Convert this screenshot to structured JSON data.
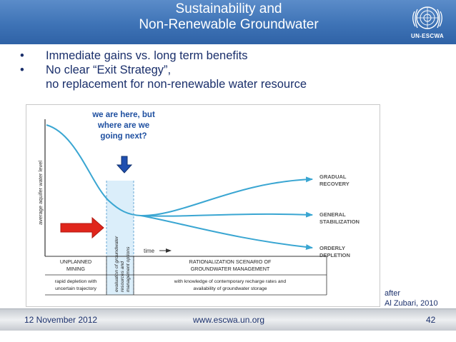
{
  "header": {
    "title_line1": "Sustainability and",
    "title_line2": "Non-Renewable Groundwater",
    "logo_text": "UN-ESCWA",
    "color": "#3e73b6"
  },
  "bullets": [
    {
      "text": "Immediate gains vs. long term benefits"
    },
    {
      "text": "No clear “Exit Strategy”,",
      "continuation": "no replacement for non-renewable water resource"
    }
  ],
  "figure": {
    "annotation": [
      "we are here, but",
      "where are we",
      "going next?"
    ],
    "y_axis_label": "average aquifer water level",
    "time_label": "time",
    "band_label": [
      "evaluation of groundwater",
      "resources and",
      "management options"
    ],
    "curves": [
      {
        "label_line1": "GRADUAL",
        "label_line2": "RECOVERY"
      },
      {
        "label_line1": "GENERAL",
        "label_line2": "STABILIZATION"
      },
      {
        "label_line1": "ORDERLY",
        "label_line2": "DEPLETION"
      }
    ],
    "phase_left": {
      "title_line1": "UNPLANNED",
      "title_line2": "MINING",
      "desc_line1": "rapid depletion with",
      "desc_line2": "uncertain trajectory"
    },
    "phase_right": {
      "title_line1": "RATIONALIZATION SCENARIO OF",
      "title_line2": "GROUNDWATER MANAGEMENT",
      "desc_line1": "with knowledge of contemporary  recharge rates and",
      "desc_line2": "availability of groundwater storage"
    },
    "colors": {
      "curve": "#3aa6d2",
      "annotation": "#1e4fa0",
      "arrow_red": "#e0251b",
      "arrow_blue": "#1f4fb0"
    }
  },
  "credit": {
    "line1": "after",
    "line2": "Al Zubari, 2010"
  },
  "footer": {
    "date": "12 November 2012",
    "url": "www.escwa.un.org",
    "page": "42"
  }
}
